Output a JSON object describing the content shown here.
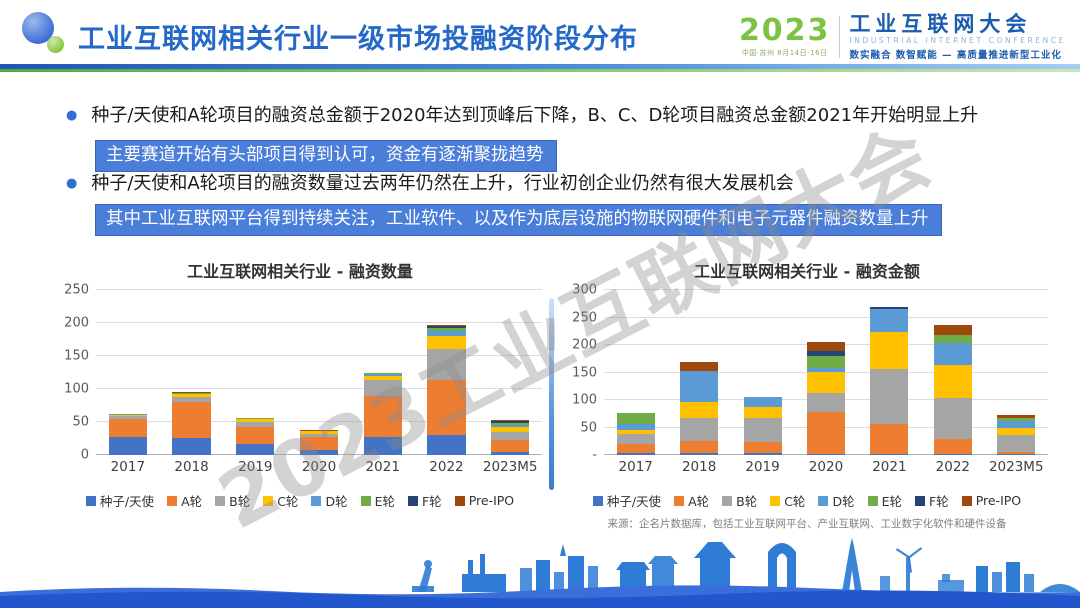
{
  "header": {
    "title": "工业互联网相关行业一级市场投融资阶段分布",
    "conference": {
      "year": "2023",
      "venue": "中国·苏州  8月14日-16日",
      "name": "工业互联网大会",
      "name_en": "INDUSTRIAL INTERNET CONFERENCE",
      "slogan": "数实融合  数智赋能 — 高质量推进新型工业化"
    }
  },
  "bullets": [
    {
      "text": "种子/天使和A轮项目的融资总金额于2020年达到顶峰后下降，B、C、D轮项目融资总金额2021年开始明显上升",
      "highlight": "主要赛道开始有头部项目得到认可，资金有逐渐聚拢趋势"
    },
    {
      "text": "种子/天使和A轮项目的融资数量过去两年仍然在上升，行业初创企业仍然有很大发展机会",
      "highlight": "其中工业互联网平台得到持续关注，工业软件、以及作为底层设施的物联网硬件和电子元器件融资数量上升"
    }
  ],
  "watermark": "2023工业互联网大会",
  "source": "来源：企名片数据库，包括工业互联网平台、产业互联网、工业数字化软件和硬件设备",
  "colors": {
    "accent_blue": "#2468c8",
    "highlight_bg": "#4a7ed9",
    "divider_green": "#57a93c",
    "footer_blue": "#2256cd"
  },
  "chart_data": [
    {
      "type": "bar",
      "stacked": true,
      "title": "工业互联网相关行业 - 融资数量",
      "categories": [
        "2017",
        "2018",
        "2019",
        "2020",
        "2021",
        "2022",
        "2023M5"
      ],
      "series": [
        {
          "name": "种子/天使",
          "color": "#4472C4",
          "values": [
            28,
            26,
            17,
            7,
            28,
            30,
            5
          ]
        },
        {
          "name": "A轮",
          "color": "#ED7D31",
          "values": [
            27,
            54,
            26,
            20,
            62,
            83,
            17
          ]
        },
        {
          "name": "B轮",
          "color": "#A5A5A5",
          "values": [
            4,
            8,
            7,
            5,
            23,
            47,
            13
          ]
        },
        {
          "name": "C轮",
          "color": "#FFC000",
          "values": [
            1,
            4,
            5,
            4,
            7,
            20,
            7
          ]
        },
        {
          "name": "D轮",
          "color": "#5B9BD5",
          "values": [
            2,
            1,
            0,
            0,
            3,
            8,
            3
          ]
        },
        {
          "name": "E轮",
          "color": "#70AD47",
          "values": [
            0,
            1,
            1,
            0,
            1,
            5,
            4
          ]
        },
        {
          "name": "F轮",
          "color": "#264478",
          "values": [
            0,
            0,
            0,
            0,
            1,
            2,
            3
          ]
        },
        {
          "name": "Pre-IPO",
          "color": "#9E480E",
          "values": [
            0,
            1,
            0,
            2,
            0,
            2,
            1
          ]
        }
      ],
      "ylim": [
        0,
        250
      ],
      "yticks": [
        0,
        50,
        100,
        150,
        200,
        250
      ],
      "ytick_labels": [
        "0",
        "50",
        "100",
        "150",
        "200",
        "250"
      ],
      "grid": true,
      "legend_position": "bottom"
    },
    {
      "type": "bar",
      "stacked": true,
      "title": "工业互联网相关行业 - 融资金额",
      "categories": [
        "2017",
        "2018",
        "2019",
        "2020",
        "2021",
        "2022",
        "2023M5"
      ],
      "series": [
        {
          "name": "种子/天使",
          "color": "#4472C4",
          "values": [
            3,
            4,
            4,
            1,
            1,
            2,
            1
          ]
        },
        {
          "name": "A轮",
          "color": "#ED7D31",
          "values": [
            17,
            22,
            19,
            78,
            56,
            28,
            4
          ]
        },
        {
          "name": "B轮",
          "color": "#A5A5A5",
          "values": [
            18,
            41,
            44,
            33,
            100,
            74,
            32
          ]
        },
        {
          "name": "C轮",
          "color": "#FFC000",
          "values": [
            7,
            30,
            21,
            39,
            67,
            60,
            13
          ]
        },
        {
          "name": "D轮",
          "color": "#5B9BD5",
          "values": [
            12,
            56,
            18,
            8,
            41,
            39,
            12
          ]
        },
        {
          "name": "E轮",
          "color": "#70AD47",
          "values": [
            19,
            0,
            0,
            21,
            0,
            16,
            5
          ]
        },
        {
          "name": "F轮",
          "color": "#264478",
          "values": [
            0,
            0,
            0,
            9,
            4,
            0,
            0
          ]
        },
        {
          "name": "Pre-IPO",
          "color": "#9E480E",
          "values": [
            0,
            17,
            0,
            16,
            0,
            17,
            6
          ]
        }
      ],
      "ylim": [
        0,
        300
      ],
      "yticks": [
        0,
        50,
        100,
        150,
        200,
        250,
        300
      ],
      "ytick_labels": [
        "-",
        "50",
        "100",
        "150",
        "200",
        "250",
        "300"
      ],
      "grid": true,
      "legend_position": "bottom"
    }
  ]
}
